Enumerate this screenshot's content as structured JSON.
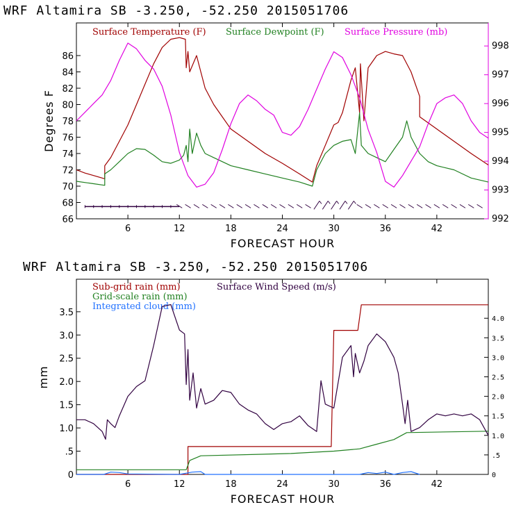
{
  "chart_data": [
    {
      "type": "line",
      "title": "WRF   Altamira   SB   -3.250,  -52.250   2015051706",
      "xlabel": "FORECAST HOUR",
      "ylabel": "Degrees F",
      "xlim": [
        0,
        48
      ],
      "ylim": [
        66,
        90
      ],
      "y2lim": [
        992,
        998.8
      ],
      "x_ticks": [
        6,
        12,
        18,
        24,
        30,
        36,
        42
      ],
      "y_ticks": [
        66,
        68,
        70,
        72,
        74,
        76,
        78,
        80,
        82,
        84,
        86
      ],
      "y2_ticks": [
        992,
        993,
        994,
        995,
        996,
        997,
        998
      ],
      "colors": {
        "temperature": "#a00000",
        "dewpoint": "#208020",
        "pressure": "#e000e0",
        "wind": "#300040"
      },
      "series": [
        {
          "name": "Surface Temperature (F)",
          "color": "#a00000",
          "axis": "left",
          "points": [
            [
              0,
              72.0
            ],
            [
              1,
              71.6
            ],
            [
              2,
              71.3
            ],
            [
              3,
              71.0
            ],
            [
              3.3,
              70.9
            ],
            [
              3.3,
              72.5
            ],
            [
              4,
              73.5
            ],
            [
              5,
              75.5
            ],
            [
              6,
              77.5
            ],
            [
              7,
              80
            ],
            [
              8,
              82.5
            ],
            [
              9,
              85
            ],
            [
              10,
              87
            ],
            [
              11,
              88
            ],
            [
              12,
              88.2
            ],
            [
              12.7,
              88
            ],
            [
              12.8,
              84.5
            ],
            [
              13,
              86.5
            ],
            [
              13.2,
              84
            ],
            [
              14,
              86
            ],
            [
              14.5,
              84
            ],
            [
              15,
              82
            ],
            [
              16,
              80
            ],
            [
              17,
              78.5
            ],
            [
              18,
              77
            ],
            [
              20,
              75.5
            ],
            [
              22,
              74
            ],
            [
              24,
              72.8
            ],
            [
              26,
              71.5
            ],
            [
              27.5,
              70.5
            ],
            [
              28,
              72.5
            ],
            [
              29,
              75
            ],
            [
              30,
              77.5
            ],
            [
              30.5,
              77.8
            ],
            [
              31,
              79
            ],
            [
              32,
              83
            ],
            [
              32.5,
              84.5
            ],
            [
              33,
              79
            ],
            [
              33.1,
              85
            ],
            [
              33.5,
              78
            ],
            [
              34,
              84.5
            ],
            [
              35,
              86
            ],
            [
              36,
              86.5
            ],
            [
              37,
              86.2
            ],
            [
              38,
              86
            ],
            [
              39,
              84
            ],
            [
              40,
              81
            ],
            [
              40,
              78.5
            ],
            [
              42,
              77
            ],
            [
              44,
              75.5
            ],
            [
              46,
              74
            ],
            [
              48,
              72.6
            ]
          ]
        },
        {
          "name": "Surface Dewpoint (F)",
          "color": "#208020",
          "axis": "left",
          "points": [
            [
              0,
              70.6
            ],
            [
              2,
              70.3
            ],
            [
              3.3,
              70.1
            ],
            [
              3.3,
              71.5
            ],
            [
              4,
              72
            ],
            [
              5,
              73
            ],
            [
              6,
              74
            ],
            [
              7,
              74.6
            ],
            [
              8,
              74.5
            ],
            [
              9,
              73.8
            ],
            [
              10,
              73
            ],
            [
              11,
              72.8
            ],
            [
              12,
              73.2
            ],
            [
              12.5,
              73.8
            ],
            [
              12.8,
              75
            ],
            [
              13,
              73
            ],
            [
              13.2,
              77
            ],
            [
              13.5,
              74
            ],
            [
              14,
              76.5
            ],
            [
              14.5,
              75
            ],
            [
              15,
              74
            ],
            [
              16,
              73.5
            ],
            [
              18,
              72.5
            ],
            [
              20,
              72
            ],
            [
              22,
              71.5
            ],
            [
              24,
              71
            ],
            [
              26,
              70.5
            ],
            [
              27.5,
              70
            ],
            [
              28,
              72
            ],
            [
              29,
              74
            ],
            [
              30,
              75
            ],
            [
              31,
              75.5
            ],
            [
              32,
              75.7
            ],
            [
              32.5,
              74
            ],
            [
              33,
              79
            ],
            [
              33.2,
              75
            ],
            [
              34,
              74
            ],
            [
              35,
              73.5
            ],
            [
              36,
              73
            ],
            [
              37,
              74.5
            ],
            [
              38,
              76
            ],
            [
              38.5,
              78
            ],
            [
              39,
              76
            ],
            [
              40,
              74
            ],
            [
              41,
              73
            ],
            [
              42,
              72.5
            ],
            [
              44,
              72
            ],
            [
              46,
              71
            ],
            [
              48,
              70.5
            ]
          ]
        },
        {
          "name": "Surface Pressure (mb)",
          "color": "#e000e0",
          "axis": "right",
          "points": [
            [
              0,
              995.4
            ],
            [
              1,
              995.7
            ],
            [
              2,
              996
            ],
            [
              3,
              996.3
            ],
            [
              4,
              996.8
            ],
            [
              5,
              997.5
            ],
            [
              6,
              998.1
            ],
            [
              7,
              997.9
            ],
            [
              8,
              997.5
            ],
            [
              9,
              997.2
            ],
            [
              10,
              996.6
            ],
            [
              11,
              995.6
            ],
            [
              12,
              994.3
            ],
            [
              13,
              993.5
            ],
            [
              14,
              993.1
            ],
            [
              15,
              993.2
            ],
            [
              16,
              993.6
            ],
            [
              17,
              994.4
            ],
            [
              18,
              995.3
            ],
            [
              19,
              996
            ],
            [
              20,
              996.3
            ],
            [
              21,
              996.1
            ],
            [
              22,
              995.8
            ],
            [
              23,
              995.6
            ],
            [
              24,
              995
            ],
            [
              25,
              994.9
            ],
            [
              26,
              995.2
            ],
            [
              27,
              995.8
            ],
            [
              28,
              996.5
            ],
            [
              29,
              997.2
            ],
            [
              30,
              997.8
            ],
            [
              31,
              997.6
            ],
            [
              32,
              997
            ],
            [
              33,
              996.2
            ],
            [
              34,
              995.1
            ],
            [
              35,
              994.3
            ],
            [
              36,
              993.3
            ],
            [
              37,
              993.1
            ],
            [
              38,
              993.5
            ],
            [
              39,
              994
            ],
            [
              40,
              994.5
            ],
            [
              41,
              995.3
            ],
            [
              42,
              996
            ],
            [
              43,
              996.2
            ],
            [
              44,
              996.3
            ],
            [
              45,
              996
            ],
            [
              46,
              995.4
            ],
            [
              47,
              995
            ],
            [
              48,
              994.8
            ]
          ]
        }
      ],
      "legend": [
        "Surface Temperature (F)",
        "Surface Dewpoint (F)",
        "Surface Pressure (mb)"
      ]
    },
    {
      "type": "line",
      "title": "WRF   Altamira   SB   -3.250,  -52.250   2015051706",
      "xlabel": "FORECAST HOUR",
      "ylabel": "mm",
      "xlim": [
        0,
        48
      ],
      "ylim": [
        0,
        4.2
      ],
      "y2lim": [
        0,
        5.0
      ],
      "x_ticks": [
        6,
        12,
        18,
        24,
        30,
        36,
        42
      ],
      "y_ticks": [
        0,
        0.5,
        1.0,
        1.5,
        2.0,
        2.5,
        3.0,
        3.5
      ],
      "y_tick_labels": [
        "0",
        ".5",
        "1.0",
        "1.5",
        "2.0",
        "2.5",
        "3.0",
        "3.5"
      ],
      "y2_ticks": [
        0,
        0.5,
        1.0,
        1.5,
        2.0,
        2.5,
        3.0,
        3.5,
        4.0
      ],
      "y2_tick_labels": [
        "0",
        ".5",
        "1.0",
        "1.5",
        "2.0",
        "2.5",
        "3.0",
        "3.5",
        "4.0"
      ],
      "colors": {
        "subgrid": "#a00000",
        "gridscale": "#208020",
        "cloud": "#2070ff",
        "wind": "#300040"
      },
      "series": [
        {
          "name": "Sub-grid rain (mm)",
          "color": "#a00000",
          "axis": "left",
          "points": [
            [
              0,
              0
            ],
            [
              13,
              0
            ],
            [
              13,
              0.6
            ],
            [
              29.7,
              0.6
            ],
            [
              30,
              3.1
            ],
            [
              32.8,
              3.1
            ],
            [
              33.2,
              3.65
            ],
            [
              48,
              3.65
            ]
          ]
        },
        {
          "name": "Grid-scale rain (mm)",
          "color": "#208020",
          "axis": "left",
          "points": [
            [
              0,
              0.1
            ],
            [
              12.8,
              0.1
            ],
            [
              13.2,
              0.3
            ],
            [
              14.5,
              0.4
            ],
            [
              25,
              0.45
            ],
            [
              30,
              0.5
            ],
            [
              33,
              0.55
            ],
            [
              35,
              0.65
            ],
            [
              37,
              0.75
            ],
            [
              38.5,
              0.9
            ],
            [
              48,
              0.93
            ]
          ]
        },
        {
          "name": "Integrated cloud (mm)",
          "color": "#2070ff",
          "axis": "left",
          "points": [
            [
              0,
              0
            ],
            [
              3.2,
              0
            ],
            [
              4,
              0.05
            ],
            [
              5,
              0.04
            ],
            [
              6,
              0.01
            ],
            [
              12,
              0
            ],
            [
              13.5,
              0.05
            ],
            [
              14.5,
              0.06
            ],
            [
              15,
              0
            ],
            [
              33,
              0
            ],
            [
              34,
              0.04
            ],
            [
              35,
              0.02
            ],
            [
              36,
              0.05
            ],
            [
              37,
              0
            ],
            [
              38,
              0.04
            ],
            [
              39,
              0.06
            ],
            [
              40,
              0
            ]
          ]
        },
        {
          "name": "Surface Wind Speed (m/s)",
          "color": "#300040",
          "axis": "right",
          "points": [
            [
              0,
              1.4
            ],
            [
              1,
              1.4
            ],
            [
              2,
              1.3
            ],
            [
              3,
              1.1
            ],
            [
              3.4,
              0.9
            ],
            [
              3.6,
              1.4
            ],
            [
              4,
              1.3
            ],
            [
              4.5,
              1.2
            ],
            [
              5,
              1.5
            ],
            [
              6,
              2.0
            ],
            [
              7,
              2.25
            ],
            [
              8,
              2.4
            ],
            [
              9,
              3.3
            ],
            [
              10,
              4.3
            ],
            [
              11,
              4.35
            ],
            [
              12,
              3.7
            ],
            [
              12.6,
              3.6
            ],
            [
              12.8,
              2.3
            ],
            [
              13,
              3.2
            ],
            [
              13.2,
              1.9
            ],
            [
              13.6,
              2.6
            ],
            [
              14,
              1.7
            ],
            [
              14.5,
              2.2
            ],
            [
              15,
              1.8
            ],
            [
              16,
              1.9
            ],
            [
              17,
              2.15
            ],
            [
              18,
              2.1
            ],
            [
              19,
              1.8
            ],
            [
              20,
              1.65
            ],
            [
              21,
              1.55
            ],
            [
              22,
              1.3
            ],
            [
              23,
              1.15
            ],
            [
              24,
              1.3
            ],
            [
              25,
              1.35
            ],
            [
              26,
              1.5
            ],
            [
              27,
              1.25
            ],
            [
              28,
              1.1
            ],
            [
              28.5,
              2.4
            ],
            [
              29,
              1.8
            ],
            [
              30,
              1.7
            ],
            [
              31,
              3.0
            ],
            [
              32,
              3.3
            ],
            [
              32.3,
              2.5
            ],
            [
              32.5,
              3.1
            ],
            [
              33,
              2.6
            ],
            [
              33.5,
              2.9
            ],
            [
              34,
              3.3
            ],
            [
              35,
              3.6
            ],
            [
              36,
              3.4
            ],
            [
              37,
              3.0
            ],
            [
              37.5,
              2.6
            ],
            [
              38,
              1.8
            ],
            [
              38.3,
              1.3
            ],
            [
              38.6,
              1.9
            ],
            [
              39,
              1.1
            ],
            [
              40,
              1.2
            ],
            [
              41,
              1.4
            ],
            [
              42,
              1.55
            ],
            [
              43,
              1.5
            ],
            [
              44,
              1.55
            ],
            [
              45,
              1.5
            ],
            [
              46,
              1.55
            ],
            [
              47,
              1.4
            ],
            [
              48,
              1.0
            ]
          ]
        }
      ],
      "legend": [
        "Sub-grid rain (mm)",
        "Surface Wind Speed (m/s)",
        "Grid-scale rain (mm)",
        "Integrated cloud (mm)"
      ]
    }
  ],
  "wind_barbs": {
    "color": "#300040",
    "level": 67.5
  }
}
